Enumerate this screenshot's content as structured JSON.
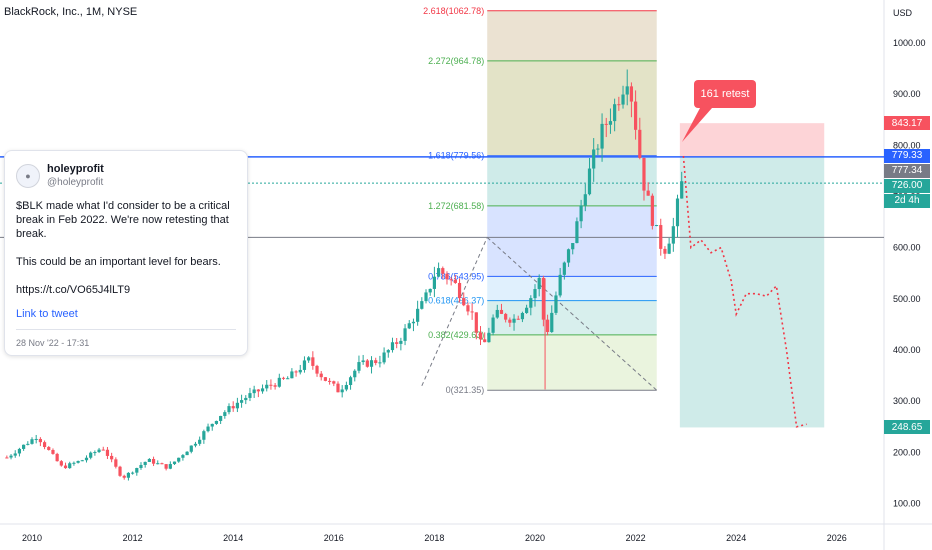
{
  "header": {
    "title": "BlackRock, Inc., 1M, NYSE"
  },
  "axis": {
    "currency": "USD"
  },
  "colors": {
    "up": "#26a69a",
    "down": "#f7525f",
    "blue_line": "#2962ff",
    "fib_green": "#4caf50",
    "dotted_red": "#f23645"
  },
  "chart_data": {
    "type": "candlestick",
    "title": "BlackRock, Inc., 1M, NYSE",
    "ylim": [
      60,
      1100
    ],
    "y_ticks": [
      100,
      200,
      300,
      400,
      500,
      600,
      700,
      800,
      900,
      1000
    ],
    "y_tick_labels": [
      "100.00",
      "200.00",
      "300.00",
      "400.00",
      "500.00",
      "600.00",
      "700.00",
      "800.00",
      "900.00",
      "1000.00"
    ],
    "x_ticks": [
      2010,
      2012,
      2014,
      2016,
      2018,
      2020,
      2022,
      2024,
      2026
    ],
    "x_tick_labels": [
      "2010",
      "2012",
      "2014",
      "2016",
      "2018",
      "2020",
      "2022",
      "2024",
      "2026"
    ],
    "xlim": [
      2009.4,
      2027.0
    ],
    "anchors": [
      [
        2009.5,
        190
      ],
      [
        2010.1,
        232
      ],
      [
        2010.6,
        170
      ],
      [
        2011.0,
        185
      ],
      [
        2011.4,
        210
      ],
      [
        2011.8,
        150
      ],
      [
        2012.3,
        185
      ],
      [
        2012.7,
        170
      ],
      [
        2013.2,
        215
      ],
      [
        2013.7,
        270
      ],
      [
        2014.2,
        305
      ],
      [
        2014.7,
        330
      ],
      [
        2015.1,
        345
      ],
      [
        2015.5,
        380
      ],
      [
        2015.8,
        345
      ],
      [
        2016.1,
        320
      ],
      [
        2016.5,
        370
      ],
      [
        2016.9,
        380
      ],
      [
        2017.3,
        420
      ],
      [
        2017.8,
        495
      ],
      [
        2018.05,
        560
      ],
      [
        2018.4,
        530
      ],
      [
        2018.75,
        470
      ],
      [
        2018.95,
        400
      ],
      [
        2019.2,
        470
      ],
      [
        2019.6,
        460
      ],
      [
        2019.9,
        500
      ],
      [
        2020.1,
        540
      ],
      [
        2020.2,
        420
      ],
      [
        2020.5,
        540
      ],
      [
        2020.8,
        630
      ],
      [
        2021.0,
        720
      ],
      [
        2021.3,
        820
      ],
      [
        2021.6,
        880
      ],
      [
        2021.85,
        940
      ],
      [
        2022.0,
        840
      ],
      [
        2022.15,
        730
      ],
      [
        2022.35,
        650
      ],
      [
        2022.55,
        590
      ],
      [
        2022.75,
        640
      ],
      [
        2022.92,
        726
      ]
    ],
    "projection": {
      "name": "",
      "points": [
        [
          2022.95,
          779
        ],
        [
          2023.1,
          600
        ],
        [
          2023.3,
          615
        ],
        [
          2023.5,
          590
        ],
        [
          2023.7,
          600
        ],
        [
          2023.9,
          535
        ],
        [
          2024.0,
          470
        ],
        [
          2024.2,
          510
        ],
        [
          2024.4,
          510
        ],
        [
          2024.6,
          505
        ],
        [
          2024.8,
          525
        ],
        [
          2025.0,
          400
        ],
        [
          2025.2,
          250
        ],
        [
          2025.4,
          255
        ]
      ]
    },
    "fibonacci": {
      "start_year": 2019.05,
      "end_year": 2022.42,
      "levels": [
        {
          "ratio": "0",
          "price": 321.35,
          "label": "0(321.35)",
          "color": "#787b86",
          "fill": "rgba(139,195,74,0.18)"
        },
        {
          "ratio": "0.382",
          "price": 429.63,
          "label": "0.382(429.63)",
          "color": "#4caf50",
          "fill": "rgba(38,166,154,0.18)"
        },
        {
          "ratio": "0.618",
          "price": 496.37,
          "label": "0.618(496.37)",
          "color": "#2196f3",
          "fill": "rgba(33,150,243,0.14)"
        },
        {
          "ratio": "0.786",
          "price": 543.95,
          "label": "0.786(543.95)",
          "color": "#2962ff",
          "fill": "rgba(41,98,255,0.18)"
        },
        {
          "ratio": "1.272",
          "price": 681.58,
          "label": "1.272(681.58)",
          "color": "#4caf50",
          "fill": "rgba(38,166,154,0.22)"
        },
        {
          "ratio": "1.618",
          "price": 779.56,
          "label": "1.618(779.56)",
          "color": "#2962ff",
          "fill": "rgba(128,128,0,0.22)"
        },
        {
          "ratio": "2.272",
          "price": 964.78,
          "label": "2.272(964.78)",
          "color": "#4caf50",
          "fill": "rgba(165,124,50,0.22)"
        },
        {
          "ratio": "2.618",
          "price": 1062.78,
          "label": "2.618(1062.78)",
          "color": "#f23645",
          "fill": ""
        }
      ]
    },
    "horizontal_lines": [
      {
        "price": 777.34,
        "color": "#2962ff",
        "style": "solid"
      },
      {
        "price": 620,
        "color": "#787b86",
        "style": "solid"
      },
      {
        "price": 726.0,
        "color": "#26a69a",
        "style": "dotted"
      }
    ],
    "position": {
      "entry": 777.34,
      "target_high": 843.17,
      "target_low": 248.65,
      "start_year": 2022.88,
      "end_year": 2025.75
    },
    "price_tags": [
      {
        "label": "843.17",
        "price": 843.17,
        "bg": "#f7525f"
      },
      {
        "label": "779.33",
        "price": 779.33,
        "bg": "#2962ff"
      },
      {
        "label": "777.34",
        "price": 777.34,
        "bg": "#787b86"
      },
      {
        "label": "726.00",
        "price": 726.0,
        "bg": "#26a69a"
      },
      {
        "label": "2d 4h",
        "price": 726.0,
        "bg": "#26a69a"
      },
      {
        "label": "248.65",
        "price": 248.65,
        "bg": "#26a69a"
      }
    ],
    "callout": {
      "text": "161 retest"
    }
  },
  "tweet": {
    "name": "holeyprofit",
    "handle": "@holeyprofit",
    "body_1": "$BLK made what I'd consider to be a critical break in Feb 2022. We're now retesting that break.",
    "body_2": "This could be an important level for bears.",
    "url": "https://t.co/VO65J4lLT9",
    "link_label": "Link to tweet",
    "date": "28 Nov '22 - 17:31"
  }
}
